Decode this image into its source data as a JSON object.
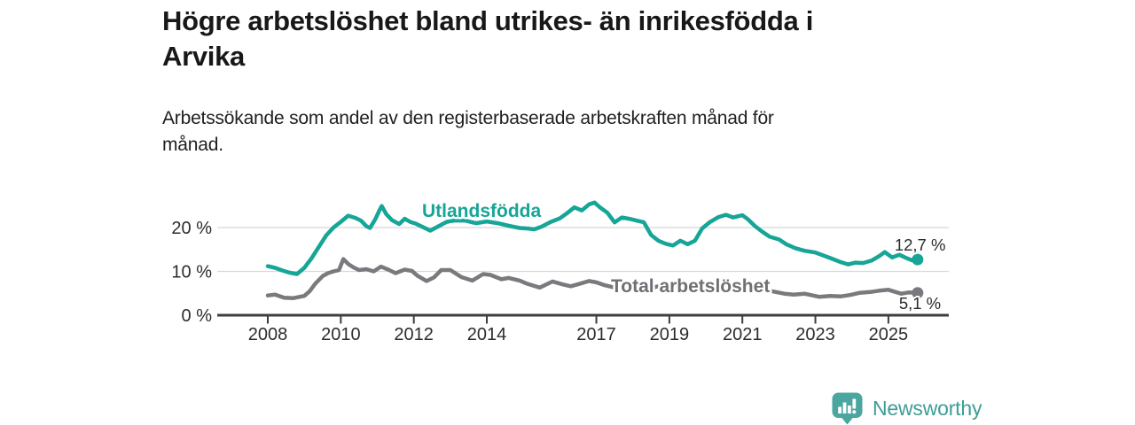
{
  "header": {
    "title_lines": [
      "Högre arbetslöshet bland utrikes- än inrikesfödda i",
      "Arvika"
    ],
    "subtitle_lines": [
      "Arbetssökande som andel av den registerbaserade arbetskraften månad för",
      "månad."
    ]
  },
  "footer": {
    "brand_label": "Newsworthy",
    "brand_icon": "newsworthy-speech-bubble-bar-chart-icon"
  },
  "colors": {
    "teal_line": "#16a596",
    "gray_line": "#7a7a7e",
    "gray_label": "#6f6f74",
    "grid": "#d8d8d8",
    "axis": "#3d3d3d",
    "tick_text": "#2d2d2d",
    "value_text": "#2b2b2b",
    "logo_fill": "#4aa69f",
    "logo_text": "#3d9d97",
    "background": "#ffffff"
  },
  "chart_data": {
    "type": "line",
    "title": "Högre arbetslöshet bland utrikes- än inrikesfödda i Arvika",
    "subtitle": "Arbetssökande som andel av den registerbaserade arbetskraften månad för månad.",
    "unit": "%",
    "grid": "horizontal-only",
    "legend_position": "inline-labels",
    "x_axis": {
      "range_years": [
        2008,
        2025.8
      ],
      "ticks": [
        {
          "value": 2008,
          "label": "2008"
        },
        {
          "value": 2010,
          "label": "2010"
        },
        {
          "value": 2012,
          "label": "2012"
        },
        {
          "value": 2014,
          "label": "2014"
        },
        {
          "value": 2017,
          "label": "2017"
        },
        {
          "value": 2019,
          "label": "2019"
        },
        {
          "value": 2021,
          "label": "2021"
        },
        {
          "value": 2023,
          "label": "2023"
        },
        {
          "value": 2025,
          "label": "2025"
        }
      ]
    },
    "y_axis": {
      "ylim": [
        0,
        27
      ],
      "ticks": [
        {
          "value": 0,
          "label": "0 %"
        },
        {
          "value": 10,
          "label": "10 %"
        },
        {
          "value": 20,
          "label": "20 %"
        }
      ],
      "gridlines_at": [
        10,
        20
      ]
    },
    "series": [
      {
        "name": "Utlandsfödda",
        "color": "#16a596",
        "end_label": "12,7 %",
        "last_value": 12.7,
        "points": [
          [
            2008.0,
            11.2
          ],
          [
            2008.2,
            10.8
          ],
          [
            2008.4,
            10.2
          ],
          [
            2008.6,
            9.7
          ],
          [
            2008.8,
            9.4
          ],
          [
            2009.0,
            10.8
          ],
          [
            2009.2,
            13.0
          ],
          [
            2009.4,
            15.6
          ],
          [
            2009.6,
            18.2
          ],
          [
            2009.8,
            20.0
          ],
          [
            2010.0,
            21.3
          ],
          [
            2010.2,
            22.7
          ],
          [
            2010.4,
            22.2
          ],
          [
            2010.55,
            21.6
          ],
          [
            2010.7,
            20.3
          ],
          [
            2010.8,
            19.9
          ],
          [
            2010.95,
            22.0
          ],
          [
            2011.05,
            23.8
          ],
          [
            2011.12,
            24.9
          ],
          [
            2011.25,
            23.0
          ],
          [
            2011.4,
            21.7
          ],
          [
            2011.6,
            20.8
          ],
          [
            2011.75,
            22.0
          ],
          [
            2011.9,
            21.3
          ],
          [
            2012.05,
            20.9
          ],
          [
            2012.2,
            20.3
          ],
          [
            2012.45,
            19.3
          ],
          [
            2012.7,
            20.4
          ],
          [
            2012.9,
            21.3
          ],
          [
            2013.1,
            21.6
          ],
          [
            2013.4,
            21.6
          ],
          [
            2013.7,
            21.0
          ],
          [
            2014.0,
            21.4
          ],
          [
            2014.3,
            21.0
          ],
          [
            2014.6,
            20.4
          ],
          [
            2014.9,
            19.9
          ],
          [
            2015.1,
            19.8
          ],
          [
            2015.3,
            19.6
          ],
          [
            2015.5,
            20.2
          ],
          [
            2015.75,
            21.3
          ],
          [
            2016.0,
            22.1
          ],
          [
            2016.2,
            23.3
          ],
          [
            2016.4,
            24.6
          ],
          [
            2016.6,
            23.9
          ],
          [
            2016.8,
            25.3
          ],
          [
            2016.95,
            25.7
          ],
          [
            2017.1,
            24.6
          ],
          [
            2017.3,
            23.4
          ],
          [
            2017.5,
            21.2
          ],
          [
            2017.7,
            22.3
          ],
          [
            2017.9,
            22.0
          ],
          [
            2018.1,
            21.6
          ],
          [
            2018.3,
            21.2
          ],
          [
            2018.5,
            18.3
          ],
          [
            2018.7,
            17.0
          ],
          [
            2018.9,
            16.3
          ],
          [
            2019.1,
            15.9
          ],
          [
            2019.3,
            17.0
          ],
          [
            2019.5,
            16.2
          ],
          [
            2019.7,
            17.0
          ],
          [
            2019.9,
            19.8
          ],
          [
            2020.1,
            21.2
          ],
          [
            2020.35,
            22.4
          ],
          [
            2020.55,
            22.9
          ],
          [
            2020.75,
            22.3
          ],
          [
            2021.0,
            22.8
          ],
          [
            2021.15,
            21.9
          ],
          [
            2021.35,
            20.3
          ],
          [
            2021.55,
            19.0
          ],
          [
            2021.75,
            17.9
          ],
          [
            2022.0,
            17.3
          ],
          [
            2022.2,
            16.2
          ],
          [
            2022.45,
            15.3
          ],
          [
            2022.7,
            14.7
          ],
          [
            2023.0,
            14.3
          ],
          [
            2023.2,
            13.7
          ],
          [
            2023.45,
            12.9
          ],
          [
            2023.7,
            12.1
          ],
          [
            2023.9,
            11.6
          ],
          [
            2024.1,
            12.0
          ],
          [
            2024.3,
            11.9
          ],
          [
            2024.55,
            12.5
          ],
          [
            2024.75,
            13.5
          ],
          [
            2024.9,
            14.4
          ],
          [
            2025.1,
            13.2
          ],
          [
            2025.3,
            13.8
          ],
          [
            2025.5,
            13.0
          ],
          [
            2025.65,
            12.5
          ],
          [
            2025.8,
            12.7
          ]
        ]
      },
      {
        "name": "Total arbetslöshet",
        "color": "#7a7a7e",
        "end_label": "5,1 %",
        "last_value": 5.1,
        "points": [
          [
            2008.0,
            4.5
          ],
          [
            2008.2,
            4.7
          ],
          [
            2008.45,
            4.0
          ],
          [
            2008.7,
            3.9
          ],
          [
            2009.0,
            4.4
          ],
          [
            2009.15,
            5.5
          ],
          [
            2009.3,
            7.2
          ],
          [
            2009.5,
            8.9
          ],
          [
            2009.65,
            9.6
          ],
          [
            2009.8,
            10.0
          ],
          [
            2009.95,
            10.3
          ],
          [
            2010.07,
            12.8
          ],
          [
            2010.2,
            11.7
          ],
          [
            2010.35,
            10.9
          ],
          [
            2010.5,
            10.3
          ],
          [
            2010.7,
            10.5
          ],
          [
            2010.9,
            10.0
          ],
          [
            2011.1,
            11.1
          ],
          [
            2011.3,
            10.4
          ],
          [
            2011.5,
            9.6
          ],
          [
            2011.75,
            10.4
          ],
          [
            2011.95,
            10.1
          ],
          [
            2012.1,
            9.0
          ],
          [
            2012.35,
            7.8
          ],
          [
            2012.55,
            8.6
          ],
          [
            2012.75,
            10.3
          ],
          [
            2013.0,
            10.3
          ],
          [
            2013.3,
            8.7
          ],
          [
            2013.6,
            7.9
          ],
          [
            2013.9,
            9.4
          ],
          [
            2014.1,
            9.2
          ],
          [
            2014.4,
            8.2
          ],
          [
            2014.6,
            8.5
          ],
          [
            2014.9,
            7.9
          ],
          [
            2015.1,
            7.2
          ],
          [
            2015.45,
            6.3
          ],
          [
            2015.8,
            7.7
          ],
          [
            2016.1,
            7.0
          ],
          [
            2016.3,
            6.6
          ],
          [
            2016.55,
            7.2
          ],
          [
            2016.8,
            7.8
          ],
          [
            2017.0,
            7.5
          ],
          [
            2017.2,
            6.9
          ],
          [
            2017.5,
            6.3
          ],
          [
            2017.75,
            6.8
          ],
          [
            2018.0,
            7.2
          ],
          [
            2018.25,
            6.6
          ],
          [
            2018.5,
            6.2
          ],
          [
            2018.75,
            6.7
          ],
          [
            2019.0,
            7.0
          ],
          [
            2019.25,
            6.6
          ],
          [
            2019.5,
            6.3
          ],
          [
            2019.75,
            6.7
          ],
          [
            2020.0,
            7.0
          ],
          [
            2020.3,
            7.6
          ],
          [
            2020.6,
            7.3
          ],
          [
            2020.9,
            6.9
          ],
          [
            2021.2,
            6.4
          ],
          [
            2021.5,
            5.9
          ],
          [
            2021.8,
            5.5
          ],
          [
            2022.15,
            4.9
          ],
          [
            2022.4,
            4.7
          ],
          [
            2022.7,
            4.9
          ],
          [
            2023.1,
            4.2
          ],
          [
            2023.4,
            4.4
          ],
          [
            2023.7,
            4.3
          ],
          [
            2023.95,
            4.6
          ],
          [
            2024.2,
            5.1
          ],
          [
            2024.5,
            5.3
          ],
          [
            2024.75,
            5.6
          ],
          [
            2025.0,
            5.8
          ],
          [
            2025.2,
            5.3
          ],
          [
            2025.35,
            4.9
          ],
          [
            2025.55,
            5.2
          ],
          [
            2025.8,
            5.1
          ]
        ]
      }
    ]
  }
}
